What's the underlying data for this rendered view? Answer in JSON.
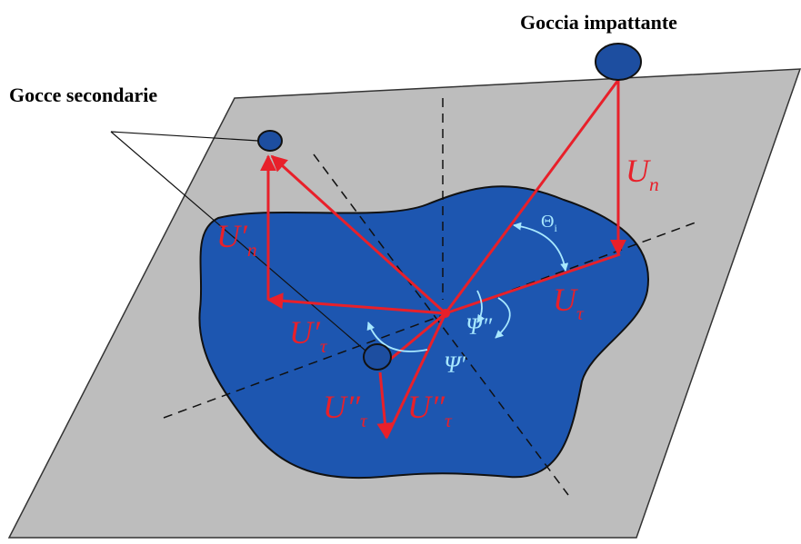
{
  "labels": {
    "impacting_drop": "Goccia impattante",
    "secondary_drops": "Gocce secondarie",
    "un": {
      "base": "U",
      "sub": "n"
    },
    "un_prime": {
      "base": "U′",
      "sub": "n"
    },
    "ut_prime": {
      "base": "U′",
      "sub": "τ"
    },
    "ut": {
      "base": "U",
      "sub": "τ"
    },
    "theta": {
      "base": "Θ",
      "sub": "i"
    },
    "psi2": "Ψ″",
    "psi1": "Ψ′",
    "ut2_left": {
      "base": "U″",
      "sub": "τ"
    },
    "ut2_right": {
      "base": "U″",
      "sub": "τ"
    }
  }
}
